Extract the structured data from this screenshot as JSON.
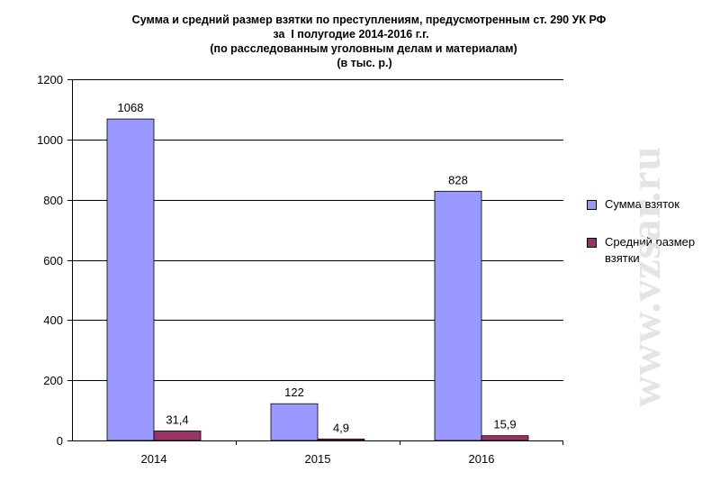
{
  "title_lines": [
    "Сумма и средний размер взятки по преступлениям, предусмотренным ст. 290 УК РФ",
    "за  I полугодие 2014-2016 г.г.",
    "(по расследованным уголовным делам и материалам)",
    "(в тыс. р.)"
  ],
  "watermark": "www.vzsar.ru",
  "chart_data": {
    "type": "bar",
    "title": "Сумма и средний размер взятки по преступлениям, предусмотренным ст. 290 УК РФ за  I полугодие 2014-2016 г.г. (по расследованным уголовным делам и материалам) (в тыс. р.)",
    "categories": [
      "2014",
      "2015",
      "2016"
    ],
    "series": [
      {
        "name": "Сумма взяток",
        "values": [
          1068,
          122,
          828
        ],
        "labels": [
          "1068",
          "122",
          "828"
        ],
        "color": "#9999ff"
      },
      {
        "name": "Средний размер взятки",
        "values": [
          31.4,
          4.9,
          15.9
        ],
        "labels": [
          "31,4",
          "4,9",
          "15,9"
        ],
        "color": "#993366"
      }
    ],
    "ylim": [
      0,
      1200
    ],
    "yticks": [
      0,
      200,
      400,
      600,
      800,
      1000,
      1200
    ],
    "grid": true,
    "legend_position": "right",
    "xlabel": "",
    "ylabel": ""
  },
  "legend": {
    "items": [
      {
        "label": "Сумма взяток",
        "color": "#9999ff"
      },
      {
        "label": "Средний размер взятки",
        "color": "#993366"
      }
    ]
  }
}
